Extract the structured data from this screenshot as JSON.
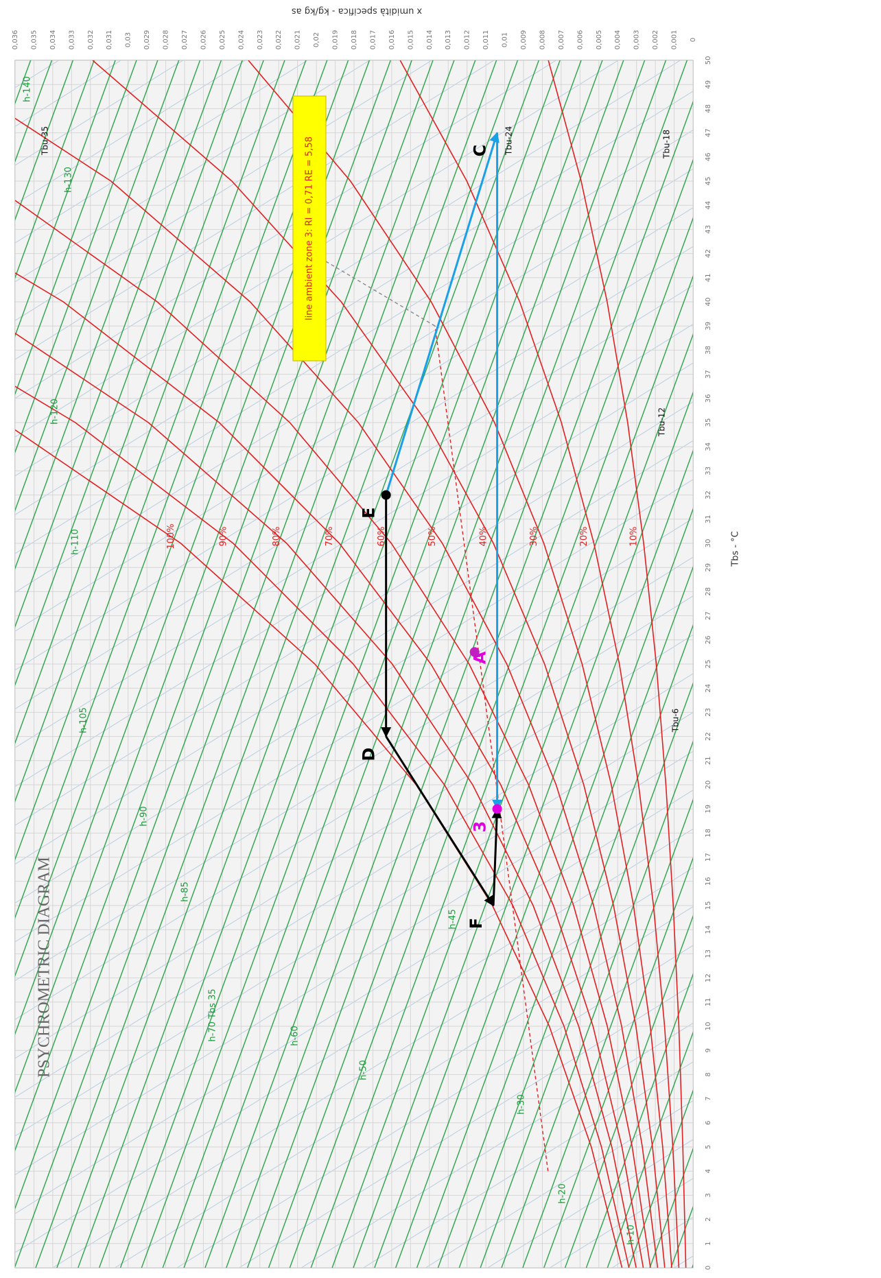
{
  "chart_data": {
    "type": "line",
    "title": "PSYCHROMETRIC DIAGRAM",
    "xlabel": "Tbs - °C",
    "ylabel": "x  umidità specifica - kg/kg as",
    "xlim": [
      0,
      50
    ],
    "xticks": [
      0,
      1,
      2,
      3,
      4,
      5,
      6,
      7,
      8,
      9,
      10,
      11,
      12,
      13,
      14,
      15,
      16,
      17,
      18,
      19,
      20,
      21,
      22,
      23,
      24,
      25,
      26,
      27,
      28,
      29,
      30,
      31,
      32,
      33,
      34,
      35,
      36,
      37,
      38,
      39,
      40,
      41,
      42,
      43,
      44,
      45,
      46,
      47,
      48,
      49,
      50
    ],
    "ylim": [
      0,
      0.036
    ],
    "yticks": [
      0,
      {
        "value": 0.001,
        "label": "0,001"
      },
      {
        "value": 0.002,
        "label": "0,002"
      },
      {
        "value": 0.003,
        "label": "0,003"
      },
      {
        "value": 0.004,
        "label": "0,004"
      },
      {
        "value": 0.005,
        "label": "0,005"
      },
      {
        "value": 0.006,
        "label": "0,006"
      },
      {
        "value": 0.007,
        "label": "0,007"
      },
      {
        "value": 0.008,
        "label": "0,008"
      },
      {
        "value": 0.009,
        "label": "0,009"
      },
      {
        "value": 0.01,
        "label": "0,01"
      },
      {
        "value": 0.011,
        "label": "0,011"
      },
      {
        "value": 0.012,
        "label": "0,012"
      },
      {
        "value": 0.013,
        "label": "0,013"
      },
      {
        "value": 0.014,
        "label": "0,014"
      },
      {
        "value": 0.015,
        "label": "0,015"
      },
      {
        "value": 0.016,
        "label": "0,016"
      },
      {
        "value": 0.017,
        "label": "0,017"
      },
      {
        "value": 0.018,
        "label": "0,018"
      },
      {
        "value": 0.019,
        "label": "0,019"
      },
      {
        "value": 0.02,
        "label": "0,02"
      },
      {
        "value": 0.021,
        "label": "0,021"
      },
      {
        "value": 0.022,
        "label": "0,022"
      },
      {
        "value": 0.023,
        "label": "0,023"
      },
      {
        "value": 0.024,
        "label": "0,024"
      },
      {
        "value": 0.025,
        "label": "0,025"
      },
      {
        "value": 0.026,
        "label": "0,026"
      },
      {
        "value": 0.027,
        "label": "0,027"
      },
      {
        "value": 0.028,
        "label": "0,028"
      },
      {
        "value": 0.029,
        "label": "0,029"
      },
      {
        "value": 0.03,
        "label": "0,03"
      },
      {
        "value": 0.031,
        "label": "0,031"
      },
      {
        "value": 0.032,
        "label": "0,032"
      },
      {
        "value": 0.033,
        "label": "0,033"
      },
      {
        "value": 0.034,
        "label": "0,034"
      },
      {
        "value": 0.035,
        "label": "0,035"
      },
      {
        "value": 0.036,
        "label": "0,036"
      }
    ],
    "grid": true,
    "series": [
      {
        "name": "10%",
        "color": "#e02020",
        "x": [
          0,
          5,
          10,
          15,
          20,
          25,
          30,
          35,
          40,
          45,
          50
        ],
        "values": [
          0.00038,
          0.00054,
          0.00075,
          0.00105,
          0.00144,
          0.00195,
          0.00262,
          0.00347,
          0.00456,
          0.00594,
          0.00768
        ]
      },
      {
        "name": "20%",
        "color": "#e02020",
        "x": [
          0,
          5,
          10,
          15,
          20,
          25,
          30,
          35,
          40,
          45,
          50
        ],
        "values": [
          0.00075,
          0.00107,
          0.00151,
          0.0021,
          0.00289,
          0.00391,
          0.00526,
          0.00699,
          0.0092,
          0.01201,
          0.01555
        ]
      },
      {
        "name": "30%",
        "color": "#e02020",
        "x": [
          0,
          5,
          10,
          15,
          20,
          25,
          30,
          35,
          40,
          45,
          50
        ],
        "values": [
          0.00113,
          0.00161,
          0.00227,
          0.00316,
          0.00434,
          0.00589,
          0.00792,
          0.01054,
          0.0139,
          0.01819,
          0.02361
        ]
      },
      {
        "name": "40%",
        "color": "#e02020",
        "x": [
          0,
          5,
          10,
          15,
          20,
          25,
          30,
          35,
          40,
          45,
          50
        ],
        "values": [
          0.0015,
          0.00215,
          0.00303,
          0.00422,
          0.0058,
          0.00788,
          0.0106,
          0.01413,
          0.01868,
          0.02449,
          0.03188
        ]
      },
      {
        "name": "50%",
        "color": "#e02020",
        "x": [
          0,
          5,
          10,
          15,
          20,
          25,
          30,
          35,
          40,
          45,
          47.6
        ],
        "values": [
          0.00188,
          0.00269,
          0.00379,
          0.00528,
          0.00727,
          0.00989,
          0.01331,
          0.01777,
          0.02352,
          0.03091,
          0.036
        ]
      },
      {
        "name": "60%",
        "color": "#e02020",
        "x": [
          0,
          5,
          10,
          15,
          20,
          25,
          30,
          35,
          40,
          44.2
        ],
        "values": [
          0.00226,
          0.00323,
          0.00455,
          0.00634,
          0.00873,
          0.01189,
          0.01602,
          0.02141,
          0.02845,
          0.036
        ]
      },
      {
        "name": "70%",
        "color": "#e02020",
        "x": [
          0,
          5,
          10,
          15,
          20,
          25,
          30,
          35,
          40,
          41.2
        ],
        "values": [
          0.00264,
          0.00377,
          0.00531,
          0.00741,
          0.01021,
          0.01392,
          0.01878,
          0.02516,
          0.03344,
          0.036
        ]
      },
      {
        "name": "80%",
        "color": "#e02020",
        "x": [
          0,
          5,
          10,
          15,
          20,
          25,
          30,
          35,
          38.7
        ],
        "values": [
          0.00302,
          0.00431,
          0.00607,
          0.00849,
          0.0117,
          0.01597,
          0.02158,
          0.02892,
          0.036
        ]
      },
      {
        "name": "90%",
        "color": "#e02020",
        "x": [
          0,
          5,
          10,
          15,
          20,
          25,
          30,
          35,
          36.5
        ],
        "values": [
          0.0034,
          0.00486,
          0.00685,
          0.00957,
          0.0132,
          0.01804,
          0.02442,
          0.0328,
          0.036
        ]
      },
      {
        "name": "100%",
        "color": "#e02020",
        "x": [
          0,
          5,
          10,
          15,
          20,
          25,
          30,
          34.7
        ],
        "values": [
          0.00377,
          0.0054,
          0.00763,
          0.01065,
          0.0147,
          0.02008,
          0.0272,
          0.036
        ]
      }
    ],
    "segments": [
      {
        "x": [
          4,
          39
        ],
        "values": [
          0.0077,
          0.0137
        ],
        "color": "#e02020",
        "dash": true,
        "arrow": false
      },
      {
        "x": [
          39,
          42
        ],
        "values": [
          0.0137,
          0.0202
        ],
        "color": "#888888",
        "dash": true,
        "arrow": false
      },
      {
        "x": [
          47,
          19
        ],
        "values": [
          0.0104,
          0.0104
        ],
        "color": "#1aa0e6",
        "dash": false,
        "arrow": true
      },
      {
        "x": [
          32,
          47
        ],
        "values": [
          0.0163,
          0.0104
        ],
        "color": "#1aa0e6",
        "dash": false,
        "arrow": true
      },
      {
        "x": [
          32,
          22
        ],
        "values": [
          0.0163,
          0.0163
        ],
        "color": "#000000",
        "dash": false,
        "arrow": true
      },
      {
        "x": [
          22,
          15
        ],
        "values": [
          0.0163,
          0.0106
        ],
        "color": "#000000",
        "dash": false,
        "arrow": true
      },
      {
        "x": [
          15,
          19
        ],
        "values": [
          0.0106,
          0.0104
        ],
        "color": "#000000",
        "dash": false,
        "arrow": true
      }
    ],
    "points": [
      {
        "label": "E",
        "x": 32,
        "y": 0.0163,
        "color": "#000000",
        "dot": true
      },
      {
        "label": "D",
        "x": 22,
        "y": 0.0163,
        "color": "#000000",
        "dot": false
      },
      {
        "label": "F",
        "x": 15,
        "y": 0.0106,
        "color": "#000000",
        "dot": false
      },
      {
        "label": "3",
        "x": 19,
        "y": 0.0104,
        "color": "#e000e0",
        "dot": true
      },
      {
        "label": "A",
        "x": 26,
        "y": 0.0104,
        "color": "#e000e0",
        "dot": false
      },
      {
        "label": "C",
        "x": 47,
        "y": 0.0104,
        "color": "#000000",
        "dot": false
      },
      {
        "x": 25.5,
        "y": 0.0116,
        "color": "#c020c0",
        "dot": true
      }
    ],
    "annotation": "line ambient zone 3: RI = 0,71 RE = 5,58",
    "enthalpy_labels": [
      "h-140",
      "h-130",
      "h-120",
      "h-110",
      "h-105",
      "h-90",
      "h-85",
      "h-70 Tbs 35",
      "h-60",
      "h-50",
      "h-45",
      "h-30",
      "h-20",
      "h-10"
    ],
    "wet_bulb_labels": [
      "Tbu-35",
      "Tbu-24",
      "Tbu-18",
      "Tbu-12",
      "Tbu-6"
    ]
  }
}
